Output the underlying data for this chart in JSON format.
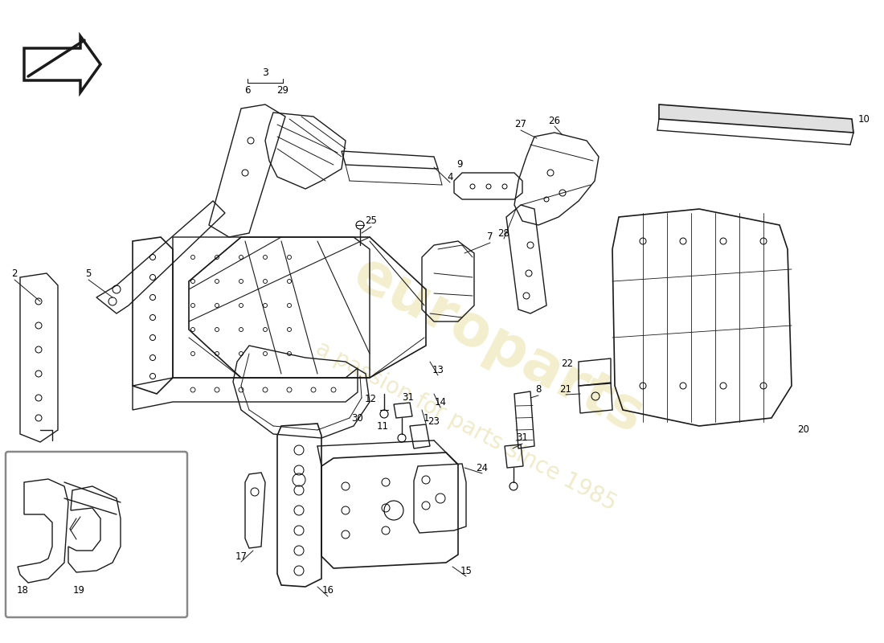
{
  "bg": "#ffffff",
  "lc": "#1a1a1a",
  "wm_color1": "#d4c44a",
  "wm_color2": "#c8b840",
  "wm_alpha": 0.28,
  "label_fs": 8.5,
  "figsize": [
    11.0,
    8.0
  ],
  "dpi": 100
}
